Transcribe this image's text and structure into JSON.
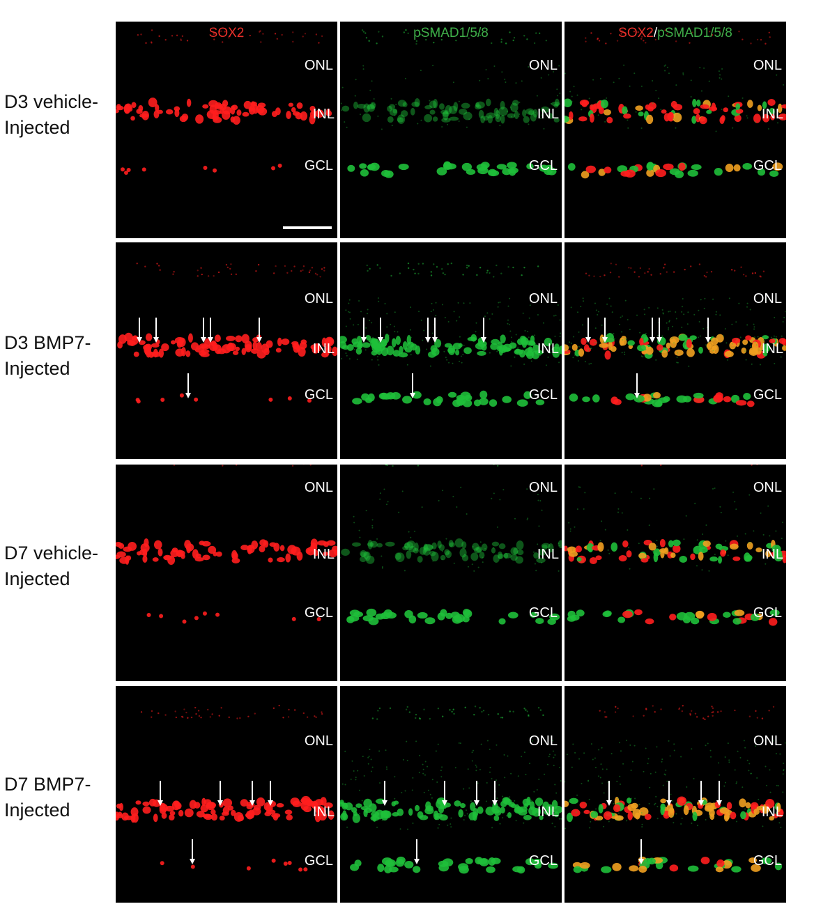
{
  "rows": [
    {
      "label_line1": "D3 vehicle-",
      "label_line2": "Injected"
    },
    {
      "label_line1": "D3 BMP7-",
      "label_line2": "Injected"
    },
    {
      "label_line1": "D7 vehicle-",
      "label_line2": "Injected"
    },
    {
      "label_line1": "D7 BMP7-",
      "label_line2": "Injected"
    }
  ],
  "columns": [
    {
      "title": "SOX2",
      "title_color": "#e8302a"
    },
    {
      "title": "pSMAD1/5/8",
      "title_color": "#3fae49"
    },
    {
      "title_part1": "SOX2",
      "title_separator": "/",
      "title_part2": "pSMAD1/5/8",
      "part1_color": "#e8302a",
      "part2_color": "#3fae49"
    }
  ],
  "layers": {
    "onl": "ONL",
    "inl": "INL",
    "gcl": "GCL"
  },
  "colors": {
    "sox2": "#ff1e1e",
    "psmad": "#1fbf3a",
    "merge": "#f0a020",
    "background": "#000000",
    "arrow": "#ffffff"
  }
}
